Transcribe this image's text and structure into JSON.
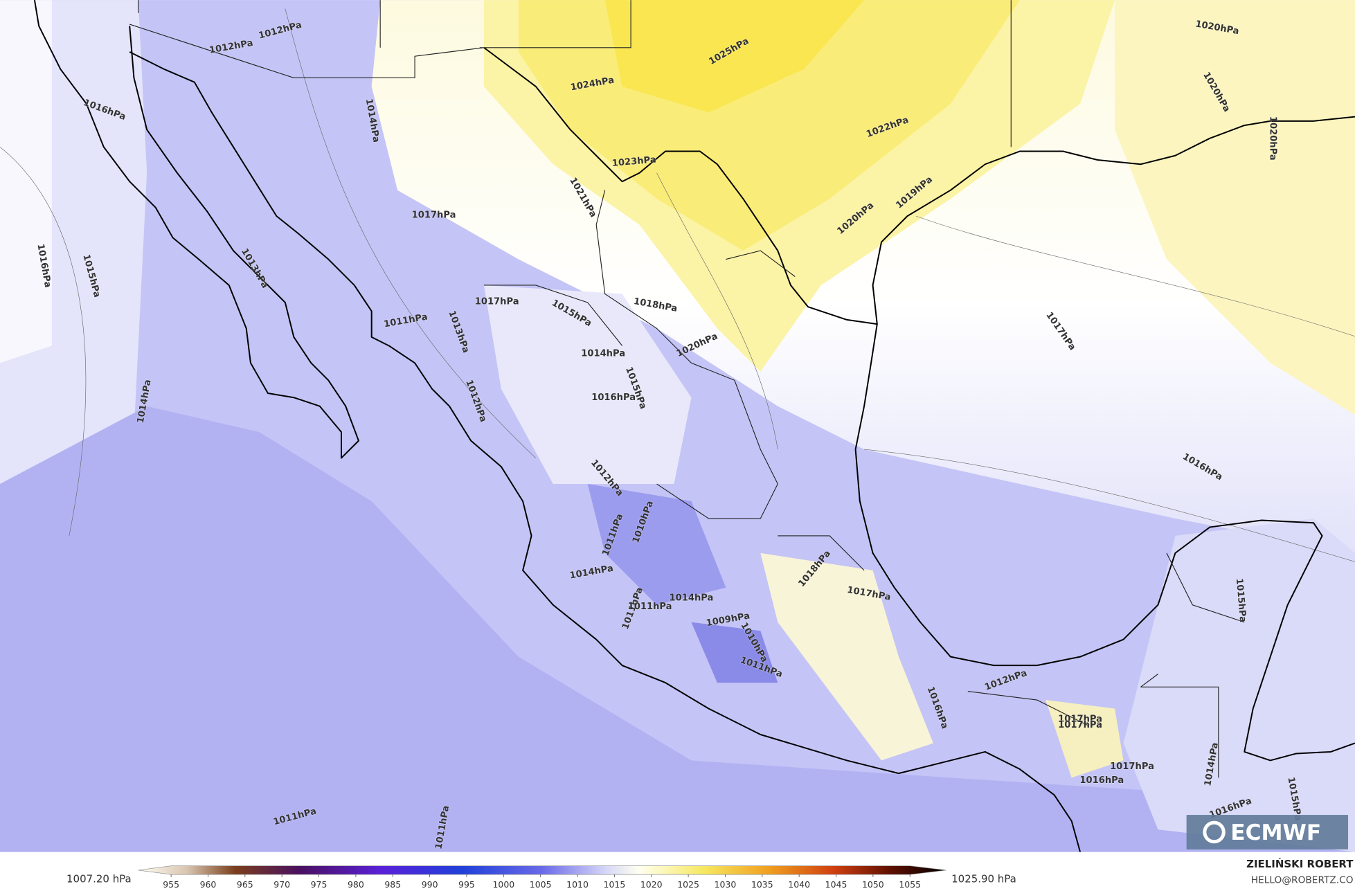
{
  "map": {
    "contour_labels": [
      "1012hPa",
      "1012hPa",
      "1016hPa",
      "1014hPa",
      "1024hPa",
      "1025hPa",
      "1020hPa",
      "1020hPa",
      "1020hPa",
      "1022hPa",
      "1023hPa",
      "1021hPa",
      "1017hPa",
      "1016hPa",
      "1015hPa",
      "1020hPa",
      "1019hPa",
      "1013hPa",
      "1017hPa",
      "1015hPa",
      "1018hPa",
      "1011hPa",
      "1013hPa",
      "1017hPa",
      "1020hPa",
      "1014hPa",
      "1015hPa",
      "1016hPa",
      "1012hPa",
      "1014hPa",
      "1016hPa",
      "1012hPa",
      "1011hPa",
      "1010hPa",
      "1014hPa",
      "1018hPa",
      "1017hPa",
      "1014hPa",
      "1015hPa",
      "1011hPa",
      "1011hPa",
      "1009hPa",
      "1010hPa",
      "1011hPa",
      "1012hPa",
      "1016hPa",
      "1017hPa",
      "1017hPa",
      "1017hPa",
      "1016hPa",
      "1014hPa",
      "1015hPa",
      "1016hPa",
      "1011hPa",
      "1011hPa"
    ]
  },
  "colorbar": {
    "min_label": "1007.20 hPa",
    "max_label": "1025.90 hPa",
    "ticks": [
      955,
      960,
      965,
      970,
      975,
      980,
      985,
      990,
      995,
      1000,
      1005,
      1010,
      1015,
      1020,
      1025,
      1030,
      1035,
      1040,
      1045,
      1050,
      1055
    ]
  },
  "credit": {
    "author": "ZIELIŃSKI ROBERT",
    "contact": "HELLO@ROBERTZ.CO"
  },
  "logo": "ECMWF"
}
